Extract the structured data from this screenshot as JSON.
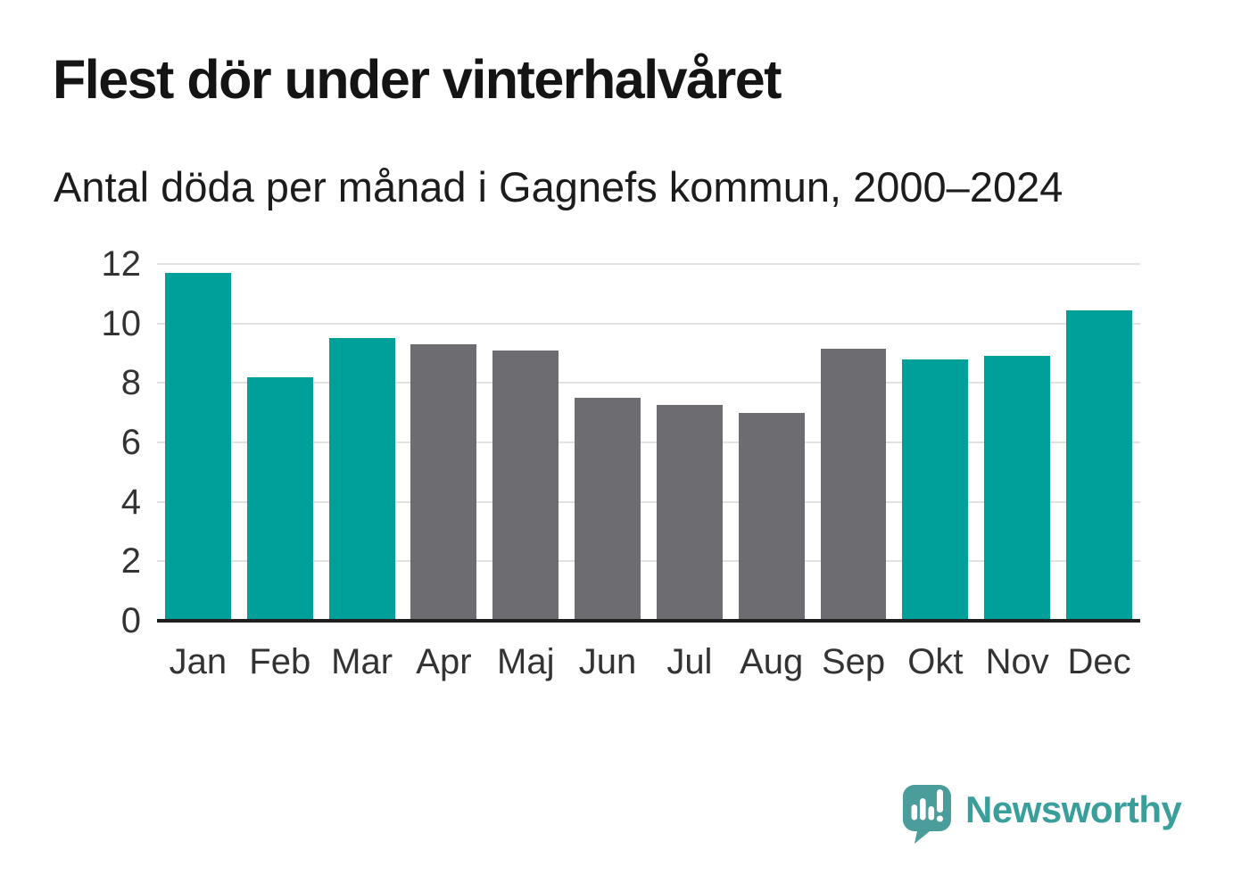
{
  "title": "Flest dör under vinterhalvåret",
  "subtitle": "Antal döda per månad i Gagnefs kommun, 2000–2024",
  "chart_data": {
    "type": "bar",
    "title": "Flest dör under vinterhalvåret",
    "subtitle": "Antal döda per månad i Gagnefs kommun, 2000–2024",
    "categories": [
      "Jan",
      "Feb",
      "Mar",
      "Apr",
      "Maj",
      "Jun",
      "Jul",
      "Aug",
      "Sep",
      "Okt",
      "Nov",
      "Dec"
    ],
    "values": [
      11.7,
      8.2,
      9.5,
      9.3,
      9.1,
      7.5,
      7.25,
      7.0,
      9.15,
      8.8,
      8.9,
      10.45
    ],
    "bar_colors": [
      "#00a09a",
      "#00a09a",
      "#00a09a",
      "#6c6c71",
      "#6c6c71",
      "#6c6c71",
      "#6c6c71",
      "#6c6c71",
      "#6c6c71",
      "#00a09a",
      "#00a09a",
      "#00a09a"
    ],
    "xlabel": "",
    "ylabel": "",
    "ylim": [
      0,
      12
    ],
    "yticks": [
      0,
      2,
      4,
      6,
      8,
      10,
      12
    ],
    "grid": "horizontal",
    "legend": "none",
    "colors": {
      "highlight_winter": "#00a09a",
      "muted_summer": "#6c6c71",
      "gridline": "#e2e2e2",
      "axis_line": "#1f1f1f",
      "axis_text": "#333333"
    }
  },
  "logo": {
    "text": "Newsworthy",
    "icon": "newsworthy-speech-bubble-chart-icon",
    "icon_color": "#4a9d9b",
    "text_color": "#3a9e9b"
  }
}
